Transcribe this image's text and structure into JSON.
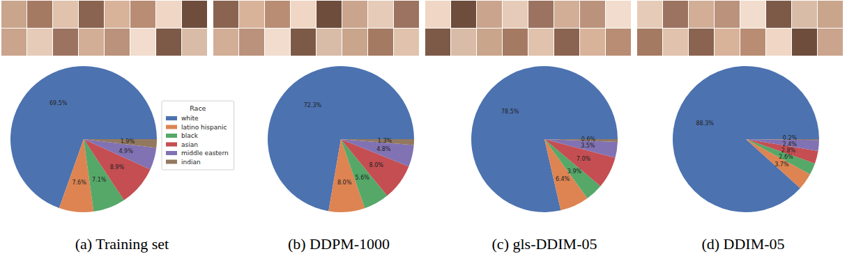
{
  "chart_data": [
    {
      "type": "pie",
      "title": "(a) Training set",
      "legend": "right",
      "legend_title": "Race",
      "categories": [
        "white",
        "latino hispanic",
        "black",
        "asian",
        "middle eastern",
        "indian"
      ],
      "values": [
        69.5,
        7.6,
        7.1,
        8.9,
        4.9,
        1.9
      ],
      "value_labels": [
        "69.5%",
        "7.6%",
        "7.1%",
        "8.9%",
        "4.9%",
        "1.9%"
      ],
      "colors": [
        "#4c72b0",
        "#dd8452",
        "#55a868",
        "#c44e52",
        "#8172b3",
        "#937860"
      ],
      "data_labels": true
    },
    {
      "type": "pie",
      "title": "(b) DDPM-1000",
      "categories": [
        "white",
        "latino hispanic",
        "black",
        "asian",
        "middle eastern",
        "indian"
      ],
      "values": [
        72.3,
        8.0,
        5.6,
        8.0,
        4.8,
        1.3
      ],
      "value_labels": [
        "72.3%",
        "8.0%",
        "5.6%",
        "8.0%",
        "4.8%",
        "1.3%"
      ],
      "colors": [
        "#4c72b0",
        "#dd8452",
        "#55a868",
        "#c44e52",
        "#8172b3",
        "#937860"
      ],
      "data_labels": true
    },
    {
      "type": "pie",
      "title": "(c) gls-DDIM-05",
      "categories": [
        "white",
        "latino hispanic",
        "black",
        "asian",
        "middle eastern",
        "indian"
      ],
      "values": [
        78.5,
        6.4,
        3.9,
        7.0,
        3.5,
        0.6
      ],
      "value_labels": [
        "78.5%",
        "6.4%",
        "3.9%",
        "7.0%",
        "3.5%",
        "0.6%"
      ],
      "colors": [
        "#4c72b0",
        "#dd8452",
        "#55a868",
        "#c44e52",
        "#8172b3",
        "#937860"
      ],
      "data_labels": true
    },
    {
      "type": "pie",
      "title": "(d) DDIM-05",
      "categories": [
        "white",
        "latino hispanic",
        "black",
        "asian",
        "middle eastern",
        "indian"
      ],
      "values": [
        88.3,
        3.7,
        2.6,
        2.8,
        2.4,
        0.2
      ],
      "value_labels": [
        "88.3%",
        "3.7%",
        "2.6%",
        "2.8%",
        "2.4%",
        "0.2%"
      ],
      "colors": [
        "#4c72b0",
        "#dd8452",
        "#55a868",
        "#c44e52",
        "#8172b3",
        "#937860"
      ],
      "data_labels": true
    }
  ]
}
